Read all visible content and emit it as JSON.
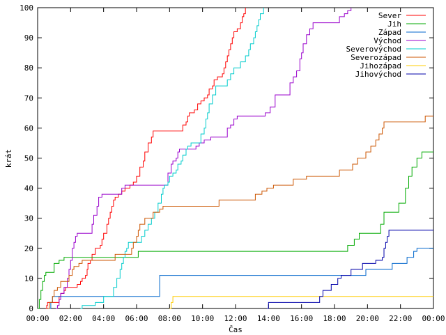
{
  "chart_data": {
    "type": "line",
    "xlabel": "Čas",
    "ylabel": "krát",
    "xlim": [
      0,
      24
    ],
    "ylim": [
      0,
      100
    ],
    "x_ticks": [
      {
        "value": 0,
        "label": "00:00"
      },
      {
        "value": 2,
        "label": "02:00"
      },
      {
        "value": 4,
        "label": "04:00"
      },
      {
        "value": 6,
        "label": "06:00"
      },
      {
        "value": 8,
        "label": "08:00"
      },
      {
        "value": 10,
        "label": "10:00"
      },
      {
        "value": 12,
        "label": "12:00"
      },
      {
        "value": 14,
        "label": "14:00"
      },
      {
        "value": 16,
        "label": "16:00"
      },
      {
        "value": 18,
        "label": "18:00"
      },
      {
        "value": 20,
        "label": "20:00"
      },
      {
        "value": 22,
        "label": "22:00"
      },
      {
        "value": 24,
        "label": "00:00"
      }
    ],
    "y_ticks": [
      {
        "value": 0,
        "label": "0"
      },
      {
        "value": 10,
        "label": "10"
      },
      {
        "value": 20,
        "label": "20"
      },
      {
        "value": 30,
        "label": "30"
      },
      {
        "value": 40,
        "label": "40"
      },
      {
        "value": 50,
        "label": "50"
      },
      {
        "value": 60,
        "label": "60"
      },
      {
        "value": 70,
        "label": "70"
      },
      {
        "value": 80,
        "label": "80"
      },
      {
        "value": 90,
        "label": "90"
      },
      {
        "value": 100,
        "label": "100"
      }
    ],
    "grid": false,
    "legend_position": "top-right",
    "series": [
      {
        "name": "Sever",
        "color": "#ff0000",
        "points": [
          [
            0.5,
            0
          ],
          [
            0.55,
            1
          ],
          [
            0.6,
            2
          ],
          [
            1.2,
            2
          ],
          [
            1.3,
            4
          ],
          [
            1.4,
            5
          ],
          [
            1.6,
            6
          ],
          [
            1.7,
            7
          ],
          [
            2.3,
            7
          ],
          [
            2.4,
            8
          ],
          [
            2.6,
            9
          ],
          [
            2.7,
            10
          ],
          [
            2.9,
            11
          ],
          [
            3.0,
            13
          ],
          [
            3.05,
            15
          ],
          [
            3.2,
            16
          ],
          [
            3.3,
            18
          ],
          [
            3.5,
            20
          ],
          [
            3.8,
            21
          ],
          [
            3.9,
            23
          ],
          [
            4.0,
            25
          ],
          [
            4.2,
            28
          ],
          [
            4.3,
            30
          ],
          [
            4.4,
            32
          ],
          [
            4.5,
            34
          ],
          [
            4.6,
            36
          ],
          [
            4.7,
            37
          ],
          [
            4.9,
            38
          ],
          [
            5.1,
            39
          ],
          [
            5.3,
            40
          ],
          [
            5.6,
            41
          ],
          [
            5.8,
            42
          ],
          [
            6.0,
            44
          ],
          [
            6.2,
            47
          ],
          [
            6.4,
            49
          ],
          [
            6.5,
            52
          ],
          [
            6.7,
            55
          ],
          [
            6.9,
            57
          ],
          [
            7.0,
            59
          ],
          [
            8.7,
            59
          ],
          [
            8.8,
            61
          ],
          [
            9.0,
            62
          ],
          [
            9.1,
            64
          ],
          [
            9.2,
            65
          ],
          [
            9.5,
            66
          ],
          [
            9.7,
            68
          ],
          [
            9.9,
            69
          ],
          [
            10.1,
            70
          ],
          [
            10.3,
            71
          ],
          [
            10.4,
            73
          ],
          [
            10.6,
            74
          ],
          [
            10.7,
            76
          ],
          [
            10.9,
            77
          ],
          [
            11.2,
            78
          ],
          [
            11.3,
            80
          ],
          [
            11.4,
            82
          ],
          [
            11.5,
            84
          ],
          [
            11.6,
            86
          ],
          [
            11.7,
            88
          ],
          [
            11.8,
            90
          ],
          [
            11.9,
            92
          ],
          [
            12.1,
            93
          ],
          [
            12.3,
            95
          ],
          [
            12.4,
            97
          ],
          [
            12.5,
            98
          ],
          [
            12.6,
            100
          ]
        ]
      },
      {
        "name": "Jih",
        "color": "#00aa00",
        "points": [
          [
            0,
            0
          ],
          [
            0.1,
            3
          ],
          [
            0.2,
            6
          ],
          [
            0.3,
            9
          ],
          [
            0.4,
            11
          ],
          [
            0.5,
            12
          ],
          [
            0.9,
            12
          ],
          [
            1.0,
            15
          ],
          [
            1.3,
            16
          ],
          [
            1.6,
            17
          ],
          [
            6.0,
            17
          ],
          [
            6.1,
            19
          ],
          [
            18.6,
            19
          ],
          [
            18.8,
            21
          ],
          [
            19.2,
            23
          ],
          [
            19.5,
            25
          ],
          [
            20.6,
            25
          ],
          [
            20.8,
            28
          ],
          [
            21.0,
            32
          ],
          [
            21.7,
            32
          ],
          [
            21.9,
            35
          ],
          [
            22.3,
            40
          ],
          [
            22.5,
            44
          ],
          [
            22.7,
            47
          ],
          [
            23.0,
            50
          ],
          [
            23.3,
            52
          ],
          [
            24,
            52
          ]
        ]
      },
      {
        "name": "Západ",
        "color": "#0066cc",
        "points": [
          [
            0.7,
            0
          ],
          [
            0.8,
            2
          ],
          [
            0.9,
            4
          ],
          [
            7.3,
            4
          ],
          [
            7.4,
            11
          ],
          [
            19.8,
            11
          ],
          [
            19.9,
            13
          ],
          [
            21.3,
            13
          ],
          [
            21.5,
            15
          ],
          [
            22.2,
            15
          ],
          [
            22.4,
            17
          ],
          [
            22.8,
            19
          ],
          [
            23.0,
            20
          ],
          [
            24,
            20
          ]
        ]
      },
      {
        "name": "Východ",
        "color": "#9900cc",
        "points": [
          [
            1.1,
            0
          ],
          [
            1.2,
            1
          ],
          [
            1.3,
            3
          ],
          [
            1.4,
            5
          ],
          [
            1.6,
            7
          ],
          [
            1.8,
            10
          ],
          [
            1.9,
            13
          ],
          [
            2.0,
            16
          ],
          [
            2.1,
            20
          ],
          [
            2.2,
            22
          ],
          [
            2.3,
            24
          ],
          [
            2.4,
            25
          ],
          [
            3.2,
            25
          ],
          [
            3.3,
            28
          ],
          [
            3.4,
            31
          ],
          [
            3.6,
            34
          ],
          [
            3.7,
            37
          ],
          [
            3.9,
            38
          ],
          [
            5.0,
            38
          ],
          [
            5.1,
            40
          ],
          [
            5.3,
            41
          ],
          [
            7.8,
            41
          ],
          [
            7.9,
            45
          ],
          [
            8.1,
            48
          ],
          [
            8.2,
            49
          ],
          [
            8.4,
            50
          ],
          [
            8.5,
            52
          ],
          [
            8.6,
            53
          ],
          [
            9.4,
            53
          ],
          [
            9.6,
            54
          ],
          [
            9.8,
            55
          ],
          [
            10.1,
            56
          ],
          [
            10.5,
            57
          ],
          [
            11.3,
            57
          ],
          [
            11.5,
            60
          ],
          [
            11.7,
            61
          ],
          [
            11.9,
            63
          ],
          [
            12.1,
            64
          ],
          [
            13.6,
            64
          ],
          [
            13.8,
            65
          ],
          [
            14.1,
            67
          ],
          [
            14.4,
            71
          ],
          [
            15.1,
            71
          ],
          [
            15.3,
            75
          ],
          [
            15.5,
            77
          ],
          [
            15.7,
            79
          ],
          [
            15.9,
            83
          ],
          [
            16.0,
            85
          ],
          [
            16.1,
            88
          ],
          [
            16.3,
            91
          ],
          [
            16.5,
            93
          ],
          [
            16.7,
            95
          ],
          [
            18.1,
            95
          ],
          [
            18.3,
            97
          ],
          [
            18.6,
            98
          ],
          [
            18.8,
            99
          ],
          [
            19.0,
            100
          ]
        ]
      },
      {
        "name": "Severovýchod",
        "color": "#00cccc",
        "points": [
          [
            2.6,
            0
          ],
          [
            2.7,
            1
          ],
          [
            3.4,
            1
          ],
          [
            3.5,
            2
          ],
          [
            3.9,
            2
          ],
          [
            4.0,
            4
          ],
          [
            4.5,
            4
          ],
          [
            4.6,
            7
          ],
          [
            4.8,
            10
          ],
          [
            5.0,
            13
          ],
          [
            5.1,
            15
          ],
          [
            5.2,
            17
          ],
          [
            5.3,
            19
          ],
          [
            5.4,
            20
          ],
          [
            5.5,
            22
          ],
          [
            6.2,
            22
          ],
          [
            6.3,
            24
          ],
          [
            6.5,
            26
          ],
          [
            6.7,
            28
          ],
          [
            6.9,
            30
          ],
          [
            7.1,
            32
          ],
          [
            7.3,
            35
          ],
          [
            7.5,
            38
          ],
          [
            7.6,
            40
          ],
          [
            7.7,
            41
          ],
          [
            7.9,
            42
          ],
          [
            8.0,
            44
          ],
          [
            8.2,
            45
          ],
          [
            8.4,
            46
          ],
          [
            8.5,
            48
          ],
          [
            8.7,
            49
          ],
          [
            8.8,
            51
          ],
          [
            9.0,
            53
          ],
          [
            9.1,
            54
          ],
          [
            9.3,
            55
          ],
          [
            9.8,
            55
          ],
          [
            9.9,
            58
          ],
          [
            10.1,
            60
          ],
          [
            10.2,
            63
          ],
          [
            10.3,
            65
          ],
          [
            10.4,
            68
          ],
          [
            10.6,
            71
          ],
          [
            10.8,
            74
          ],
          [
            11.4,
            74
          ],
          [
            11.5,
            76
          ],
          [
            11.7,
            78
          ],
          [
            11.9,
            80
          ],
          [
            12.2,
            80
          ],
          [
            12.3,
            82
          ],
          [
            12.6,
            84
          ],
          [
            12.8,
            86
          ],
          [
            12.9,
            88
          ],
          [
            13.1,
            90
          ],
          [
            13.2,
            92
          ],
          [
            13.3,
            94
          ],
          [
            13.4,
            96
          ],
          [
            13.5,
            98
          ],
          [
            13.7,
            100
          ]
        ]
      },
      {
        "name": "Severozápad",
        "color": "#cc5500",
        "points": [
          [
            0.6,
            0
          ],
          [
            0.7,
            2
          ],
          [
            0.9,
            4
          ],
          [
            1.0,
            6
          ],
          [
            1.2,
            7
          ],
          [
            1.4,
            9
          ],
          [
            1.8,
            9
          ],
          [
            1.9,
            11
          ],
          [
            2.1,
            13
          ],
          [
            2.2,
            14
          ],
          [
            2.5,
            15
          ],
          [
            2.7,
            16
          ],
          [
            4.6,
            16
          ],
          [
            4.7,
            18
          ],
          [
            5.6,
            18
          ],
          [
            5.7,
            20
          ],
          [
            5.8,
            22
          ],
          [
            6.0,
            24
          ],
          [
            6.1,
            26
          ],
          [
            6.2,
            28
          ],
          [
            6.5,
            30
          ],
          [
            6.9,
            30
          ],
          [
            7.0,
            32
          ],
          [
            7.4,
            33
          ],
          [
            7.6,
            34
          ],
          [
            10.9,
            34
          ],
          [
            11.0,
            36
          ],
          [
            13.0,
            36
          ],
          [
            13.2,
            38
          ],
          [
            13.6,
            39
          ],
          [
            13.9,
            40
          ],
          [
            14.3,
            41
          ],
          [
            15.4,
            41
          ],
          [
            15.5,
            43
          ],
          [
            16.0,
            43
          ],
          [
            16.3,
            44
          ],
          [
            18.1,
            44
          ],
          [
            18.3,
            46
          ],
          [
            18.9,
            46
          ],
          [
            19.1,
            48
          ],
          [
            19.4,
            50
          ],
          [
            19.7,
            50
          ],
          [
            19.9,
            52
          ],
          [
            20.2,
            54
          ],
          [
            20.4,
            54
          ],
          [
            20.5,
            56
          ],
          [
            20.7,
            58
          ],
          [
            20.9,
            60
          ],
          [
            21.0,
            62
          ],
          [
            23.3,
            62
          ],
          [
            23.5,
            64
          ],
          [
            24,
            64
          ]
        ]
      },
      {
        "name": "Jihozápad",
        "color": "#ffcc00",
        "points": [
          [
            8.0,
            0
          ],
          [
            8.1,
            2
          ],
          [
            8.2,
            4
          ],
          [
            24,
            4
          ]
        ]
      },
      {
        "name": "Jihovýchod",
        "color": "#0000aa",
        "points": [
          [
            13.9,
            0
          ],
          [
            14.0,
            2
          ],
          [
            16.9,
            2
          ],
          [
            17.1,
            4
          ],
          [
            17.3,
            6
          ],
          [
            17.6,
            6
          ],
          [
            17.8,
            8
          ],
          [
            18.2,
            10
          ],
          [
            18.4,
            11
          ],
          [
            18.8,
            11
          ],
          [
            19.0,
            13
          ],
          [
            19.5,
            13
          ],
          [
            19.7,
            15
          ],
          [
            20.3,
            15
          ],
          [
            20.5,
            16
          ],
          [
            20.9,
            17
          ],
          [
            21.0,
            20
          ],
          [
            21.1,
            22
          ],
          [
            21.2,
            24
          ],
          [
            21.3,
            26
          ],
          [
            24,
            26
          ]
        ]
      }
    ]
  }
}
